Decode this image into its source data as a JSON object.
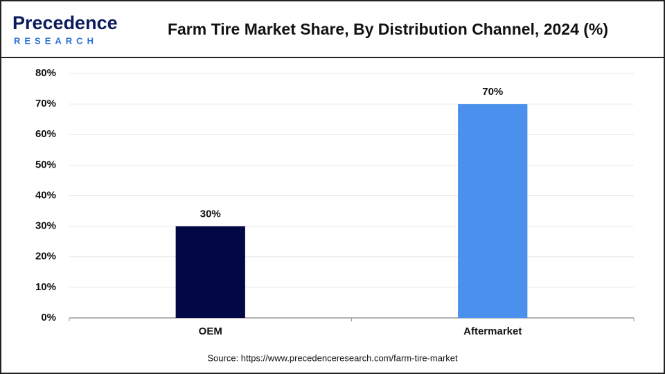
{
  "logo": {
    "name": "Precedence",
    "tagline": "RESEARCH"
  },
  "chart_data": {
    "type": "bar",
    "title": "Farm Tire Market Share, By Distribution Channel, 2024 (%)",
    "categories": [
      "OEM",
      "Aftermarket"
    ],
    "values": [
      30,
      70
    ],
    "value_labels": [
      "30%",
      "70%"
    ],
    "colors": [
      "#020846",
      "#4a90ec"
    ],
    "ylim": [
      0,
      80
    ],
    "yticks": [
      {
        "value": 0,
        "label": "0%"
      },
      {
        "value": 10,
        "label": "10%"
      },
      {
        "value": 20,
        "label": "20%"
      },
      {
        "value": 30,
        "label": "30%"
      },
      {
        "value": 40,
        "label": "40%"
      },
      {
        "value": 50,
        "label": "50%"
      },
      {
        "value": 60,
        "label": "60%"
      },
      {
        "value": 70,
        "label": "70%"
      },
      {
        "value": 80,
        "label": "80%"
      }
    ],
    "grid": true,
    "source": "Source: https://www.precedenceresearch.com/farm-tire-market"
  }
}
